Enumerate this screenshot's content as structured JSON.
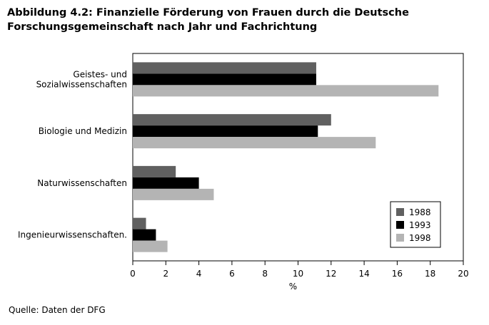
{
  "page": {
    "title_line1": "Abbildung 4.2: Finanzielle Förderung von Frauen durch die Deutsche",
    "title_line2": "Forschungsgemeinschaft nach Jahr und Fachrichtung",
    "source": "Quelle: Daten der DFG"
  },
  "chart_data": {
    "type": "bar",
    "orientation": "horizontal",
    "categories": [
      [
        "Geistes- und",
        "Sozialwissenschaften"
      ],
      [
        "Biologie und Medizin"
      ],
      [
        "Naturwissenschaften"
      ],
      [
        "Ingenieurwissenschaften."
      ]
    ],
    "series": [
      {
        "name": "1988",
        "color": "#606060",
        "values": [
          11.1,
          12.0,
          2.6,
          0.8
        ]
      },
      {
        "name": "1993",
        "color": "#000000",
        "values": [
          11.1,
          11.2,
          4.0,
          1.4
        ]
      },
      {
        "name": "1998",
        "color": "#b4b4b4",
        "values": [
          18.5,
          14.7,
          4.9,
          2.1
        ]
      }
    ],
    "xlabel": "%",
    "xlim": [
      0,
      20
    ],
    "xticks": [
      0,
      2,
      4,
      6,
      8,
      10,
      12,
      14,
      16,
      18,
      20
    ],
    "grid": false,
    "legend_position": "bottom-right"
  }
}
